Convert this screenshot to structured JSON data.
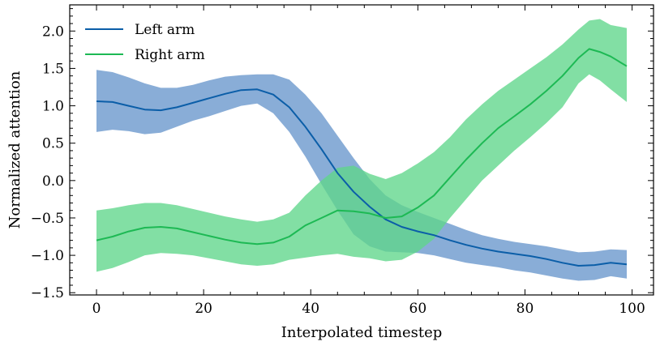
{
  "chart_data": {
    "type": "line",
    "title": "",
    "xlabel": "Interpolated timestep",
    "ylabel": "Normalized attention",
    "xlim": [
      -5,
      104
    ],
    "ylim": [
      -1.53,
      2.35
    ],
    "xticks": [
      0,
      20,
      40,
      60,
      80,
      100
    ],
    "xtick_labels": [
      "0",
      "20",
      "40",
      "60",
      "80",
      "100"
    ],
    "yticks": [
      -1.5,
      -1.0,
      -0.5,
      0.0,
      0.5,
      1.0,
      1.5,
      2.0
    ],
    "ytick_labels": [
      "−1.5",
      "−1.0",
      "−0.5",
      "0.0",
      "0.5",
      "1.0",
      "1.5",
      "2.0"
    ],
    "legend_position": "top-left",
    "series": [
      {
        "name": "Left arm",
        "color": "#0b5ea8",
        "band_color": "#5b8ec8",
        "x": [
          0,
          3,
          6,
          9,
          12,
          15,
          18,
          21,
          24,
          27,
          30,
          33,
          36,
          39,
          42,
          45,
          48,
          51,
          54,
          57,
          60,
          63,
          66,
          69,
          72,
          75,
          78,
          81,
          84,
          87,
          90,
          93,
          96,
          99
        ],
        "values": [
          1.06,
          1.05,
          1.0,
          0.95,
          0.94,
          0.98,
          1.04,
          1.1,
          1.16,
          1.21,
          1.22,
          1.15,
          0.98,
          0.72,
          0.42,
          0.1,
          -0.15,
          -0.35,
          -0.52,
          -0.62,
          -0.68,
          -0.73,
          -0.8,
          -0.86,
          -0.91,
          -0.95,
          -0.98,
          -1.01,
          -1.05,
          -1.1,
          -1.14,
          -1.13,
          -1.1,
          -1.12
        ],
        "upper": [
          1.48,
          1.45,
          1.38,
          1.3,
          1.24,
          1.24,
          1.28,
          1.34,
          1.39,
          1.41,
          1.42,
          1.42,
          1.35,
          1.15,
          0.9,
          0.6,
          0.3,
          0.02,
          -0.2,
          -0.33,
          -0.42,
          -0.5,
          -0.58,
          -0.66,
          -0.73,
          -0.78,
          -0.82,
          -0.85,
          -0.88,
          -0.92,
          -0.96,
          -0.95,
          -0.92,
          -0.93
        ],
        "lower": [
          0.65,
          0.68,
          0.66,
          0.62,
          0.64,
          0.72,
          0.8,
          0.86,
          0.93,
          1.0,
          1.03,
          0.9,
          0.65,
          0.32,
          -0.05,
          -0.4,
          -0.72,
          -0.88,
          -0.95,
          -0.96,
          -0.97,
          -1.0,
          -1.05,
          -1.1,
          -1.13,
          -1.16,
          -1.2,
          -1.23,
          -1.27,
          -1.31,
          -1.34,
          -1.33,
          -1.28,
          -1.31
        ]
      },
      {
        "name": "Right arm",
        "color": "#1db954",
        "band_color": "#5fd68a",
        "x": [
          0,
          3,
          6,
          9,
          12,
          15,
          18,
          21,
          24,
          27,
          30,
          33,
          36,
          39,
          42,
          45,
          48,
          51,
          54,
          57,
          60,
          63,
          66,
          69,
          72,
          75,
          78,
          81,
          84,
          87,
          90,
          92,
          94,
          96,
          99
        ],
        "values": [
          -0.8,
          -0.75,
          -0.68,
          -0.63,
          -0.62,
          -0.64,
          -0.69,
          -0.74,
          -0.79,
          -0.83,
          -0.85,
          -0.83,
          -0.75,
          -0.6,
          -0.5,
          -0.4,
          -0.41,
          -0.44,
          -0.5,
          -0.48,
          -0.36,
          -0.2,
          0.04,
          0.28,
          0.5,
          0.7,
          0.86,
          1.02,
          1.2,
          1.4,
          1.64,
          1.76,
          1.72,
          1.66,
          1.53
        ],
        "upper": [
          -0.4,
          -0.37,
          -0.33,
          -0.3,
          -0.3,
          -0.33,
          -0.38,
          -0.43,
          -0.48,
          -0.52,
          -0.55,
          -0.52,
          -0.43,
          -0.2,
          0.0,
          0.17,
          0.2,
          0.09,
          0.02,
          0.1,
          0.23,
          0.38,
          0.58,
          0.82,
          1.02,
          1.2,
          1.35,
          1.5,
          1.65,
          1.82,
          2.02,
          2.14,
          2.16,
          2.08,
          2.04
        ],
        "lower": [
          -1.22,
          -1.17,
          -1.09,
          -1.0,
          -0.97,
          -0.98,
          -1.0,
          -1.04,
          -1.08,
          -1.12,
          -1.14,
          -1.12,
          -1.06,
          -1.03,
          -1.0,
          -0.98,
          -1.02,
          -1.04,
          -1.08,
          -1.06,
          -0.95,
          -0.78,
          -0.5,
          -0.25,
          0.0,
          0.2,
          0.4,
          0.58,
          0.77,
          0.98,
          1.3,
          1.42,
          1.34,
          1.22,
          1.05
        ]
      }
    ]
  }
}
